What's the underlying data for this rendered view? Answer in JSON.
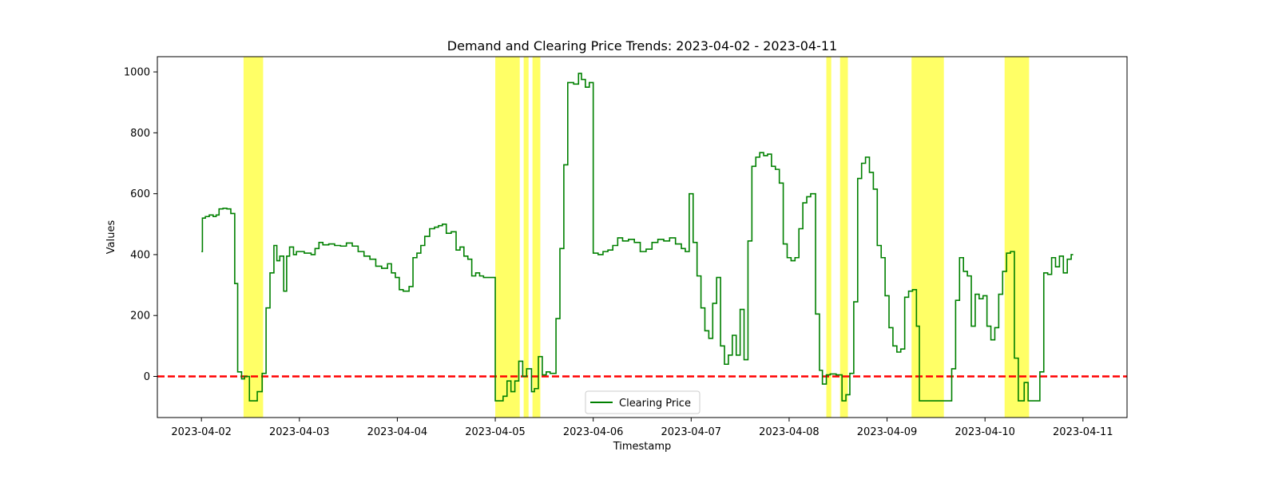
{
  "chart_data": {
    "type": "line",
    "title": "Demand and Clearing Price Trends: 2023-04-02 - 2023-04-11",
    "xlabel": "Timestamp",
    "ylabel": "Values",
    "xlim": [
      -0.45,
      9.45
    ],
    "ylim": [
      -135,
      1050
    ],
    "x_ticks": [
      {
        "value": 0,
        "label": "2023-04-02"
      },
      {
        "value": 1,
        "label": "2023-04-03"
      },
      {
        "value": 2,
        "label": "2023-04-04"
      },
      {
        "value": 3,
        "label": "2023-04-05"
      },
      {
        "value": 4,
        "label": "2023-04-06"
      },
      {
        "value": 5,
        "label": "2023-04-07"
      },
      {
        "value": 6,
        "label": "2023-04-08"
      },
      {
        "value": 7,
        "label": "2023-04-09"
      },
      {
        "value": 8,
        "label": "2023-04-10"
      },
      {
        "value": 9,
        "label": "2023-04-11"
      }
    ],
    "y_ticks": [
      0,
      200,
      400,
      600,
      800,
      1000
    ],
    "x_units": "days since 2023-04-02 00:00",
    "reference_line": {
      "y": 0,
      "color": "#ff0000",
      "style": "dashed"
    },
    "highlight_color": "#ffff00",
    "highlight_spans": [
      [
        0.43,
        0.63
      ],
      [
        3.0,
        3.25
      ],
      [
        3.29,
        3.34
      ],
      [
        3.38,
        3.46
      ],
      [
        6.38,
        6.43
      ],
      [
        6.52,
        6.6
      ],
      [
        7.25,
        7.58
      ],
      [
        8.2,
        8.45
      ]
    ],
    "legend": {
      "position": "lower center"
    },
    "series": [
      {
        "name": "Clearing Price",
        "color": "#008000",
        "step": true,
        "points": [
          [
            0.0,
            410
          ],
          [
            0.01,
            520
          ],
          [
            0.04,
            525
          ],
          [
            0.08,
            530
          ],
          [
            0.12,
            525
          ],
          [
            0.15,
            530
          ],
          [
            0.18,
            550
          ],
          [
            0.22,
            552
          ],
          [
            0.26,
            550
          ],
          [
            0.3,
            535
          ],
          [
            0.34,
            305
          ],
          [
            0.37,
            15
          ],
          [
            0.41,
            -8
          ],
          [
            0.44,
            0
          ],
          [
            0.49,
            -80
          ],
          [
            0.57,
            -50
          ],
          [
            0.62,
            10
          ],
          [
            0.66,
            225
          ],
          [
            0.7,
            340
          ],
          [
            0.74,
            430
          ],
          [
            0.77,
            380
          ],
          [
            0.8,
            395
          ],
          [
            0.84,
            280
          ],
          [
            0.87,
            395
          ],
          [
            0.9,
            425
          ],
          [
            0.94,
            400
          ],
          [
            0.97,
            410
          ],
          [
            1.05,
            405
          ],
          [
            1.12,
            400
          ],
          [
            1.16,
            420
          ],
          [
            1.2,
            440
          ],
          [
            1.24,
            432
          ],
          [
            1.3,
            435
          ],
          [
            1.36,
            430
          ],
          [
            1.42,
            428
          ],
          [
            1.48,
            438
          ],
          [
            1.54,
            428
          ],
          [
            1.6,
            410
          ],
          [
            1.66,
            395
          ],
          [
            1.72,
            385
          ],
          [
            1.78,
            362
          ],
          [
            1.84,
            355
          ],
          [
            1.9,
            370
          ],
          [
            1.94,
            340
          ],
          [
            1.98,
            325
          ],
          [
            2.02,
            285
          ],
          [
            2.06,
            280
          ],
          [
            2.12,
            295
          ],
          [
            2.16,
            390
          ],
          [
            2.2,
            405
          ],
          [
            2.24,
            430
          ],
          [
            2.28,
            460
          ],
          [
            2.33,
            485
          ],
          [
            2.38,
            490
          ],
          [
            2.42,
            495
          ],
          [
            2.46,
            500
          ],
          [
            2.5,
            470
          ],
          [
            2.55,
            475
          ],
          [
            2.6,
            415
          ],
          [
            2.64,
            425
          ],
          [
            2.68,
            395
          ],
          [
            2.72,
            385
          ],
          [
            2.76,
            330
          ],
          [
            2.8,
            340
          ],
          [
            2.84,
            330
          ],
          [
            2.88,
            325
          ],
          [
            3.0,
            -80
          ],
          [
            3.08,
            -65
          ],
          [
            3.12,
            -15
          ],
          [
            3.16,
            -50
          ],
          [
            3.2,
            -15
          ],
          [
            3.24,
            50
          ],
          [
            3.28,
            0
          ],
          [
            3.32,
            25
          ],
          [
            3.37,
            -50
          ],
          [
            3.4,
            -40
          ],
          [
            3.44,
            65
          ],
          [
            3.48,
            5
          ],
          [
            3.52,
            15
          ],
          [
            3.56,
            10
          ],
          [
            3.62,
            190
          ],
          [
            3.66,
            420
          ],
          [
            3.7,
            695
          ],
          [
            3.74,
            965
          ],
          [
            3.8,
            960
          ],
          [
            3.85,
            995
          ],
          [
            3.88,
            975
          ],
          [
            3.92,
            950
          ],
          [
            3.96,
            965
          ],
          [
            4.0,
            405
          ],
          [
            4.05,
            400
          ],
          [
            4.1,
            410
          ],
          [
            4.15,
            415
          ],
          [
            4.2,
            430
          ],
          [
            4.25,
            455
          ],
          [
            4.3,
            445
          ],
          [
            4.36,
            450
          ],
          [
            4.42,
            440
          ],
          [
            4.48,
            410
          ],
          [
            4.54,
            418
          ],
          [
            4.6,
            440
          ],
          [
            4.66,
            450
          ],
          [
            4.72,
            445
          ],
          [
            4.78,
            455
          ],
          [
            4.84,
            435
          ],
          [
            4.9,
            420
          ],
          [
            4.94,
            410
          ],
          [
            4.98,
            600
          ],
          [
            5.02,
            440
          ],
          [
            5.06,
            330
          ],
          [
            5.1,
            225
          ],
          [
            5.14,
            150
          ],
          [
            5.18,
            125
          ],
          [
            5.22,
            240
          ],
          [
            5.26,
            325
          ],
          [
            5.3,
            100
          ],
          [
            5.34,
            40
          ],
          [
            5.38,
            70
          ],
          [
            5.42,
            135
          ],
          [
            5.46,
            70
          ],
          [
            5.5,
            220
          ],
          [
            5.54,
            55
          ],
          [
            5.58,
            445
          ],
          [
            5.62,
            690
          ],
          [
            5.66,
            720
          ],
          [
            5.7,
            735
          ],
          [
            5.74,
            725
          ],
          [
            5.78,
            730
          ],
          [
            5.82,
            690
          ],
          [
            5.86,
            680
          ],
          [
            5.9,
            635
          ],
          [
            5.94,
            435
          ],
          [
            5.98,
            390
          ],
          [
            6.02,
            380
          ],
          [
            6.06,
            390
          ],
          [
            6.1,
            485
          ],
          [
            6.14,
            570
          ],
          [
            6.18,
            590
          ],
          [
            6.22,
            600
          ],
          [
            6.27,
            205
          ],
          [
            6.31,
            20
          ],
          [
            6.34,
            -25
          ],
          [
            6.38,
            5
          ],
          [
            6.42,
            8
          ],
          [
            6.48,
            5
          ],
          [
            6.54,
            -80
          ],
          [
            6.58,
            -60
          ],
          [
            6.62,
            10
          ],
          [
            6.66,
            245
          ],
          [
            6.7,
            650
          ],
          [
            6.74,
            700
          ],
          [
            6.78,
            720
          ],
          [
            6.82,
            670
          ],
          [
            6.86,
            615
          ],
          [
            6.9,
            430
          ],
          [
            6.94,
            390
          ],
          [
            6.98,
            265
          ],
          [
            7.02,
            160
          ],
          [
            7.06,
            100
          ],
          [
            7.1,
            80
          ],
          [
            7.14,
            90
          ],
          [
            7.18,
            260
          ],
          [
            7.22,
            280
          ],
          [
            7.26,
            285
          ],
          [
            7.3,
            165
          ],
          [
            7.33,
            -80
          ],
          [
            7.45,
            -80
          ],
          [
            7.6,
            -80
          ],
          [
            7.66,
            25
          ],
          [
            7.7,
            250
          ],
          [
            7.74,
            390
          ],
          [
            7.78,
            345
          ],
          [
            7.82,
            330
          ],
          [
            7.86,
            165
          ],
          [
            7.9,
            270
          ],
          [
            7.94,
            255
          ],
          [
            7.98,
            265
          ],
          [
            8.02,
            165
          ],
          [
            8.06,
            120
          ],
          [
            8.1,
            160
          ],
          [
            8.14,
            270
          ],
          [
            8.18,
            345
          ],
          [
            8.22,
            405
          ],
          [
            8.26,
            410
          ],
          [
            8.3,
            60
          ],
          [
            8.34,
            -80
          ],
          [
            8.4,
            -20
          ],
          [
            8.44,
            -80
          ],
          [
            8.48,
            -80
          ],
          [
            8.52,
            -80
          ],
          [
            8.56,
            15
          ],
          [
            8.6,
            340
          ],
          [
            8.64,
            335
          ],
          [
            8.68,
            390
          ],
          [
            8.72,
            360
          ],
          [
            8.76,
            395
          ],
          [
            8.8,
            340
          ],
          [
            8.84,
            385
          ],
          [
            8.88,
            400
          ],
          [
            8.9,
            400
          ]
        ]
      }
    ]
  }
}
